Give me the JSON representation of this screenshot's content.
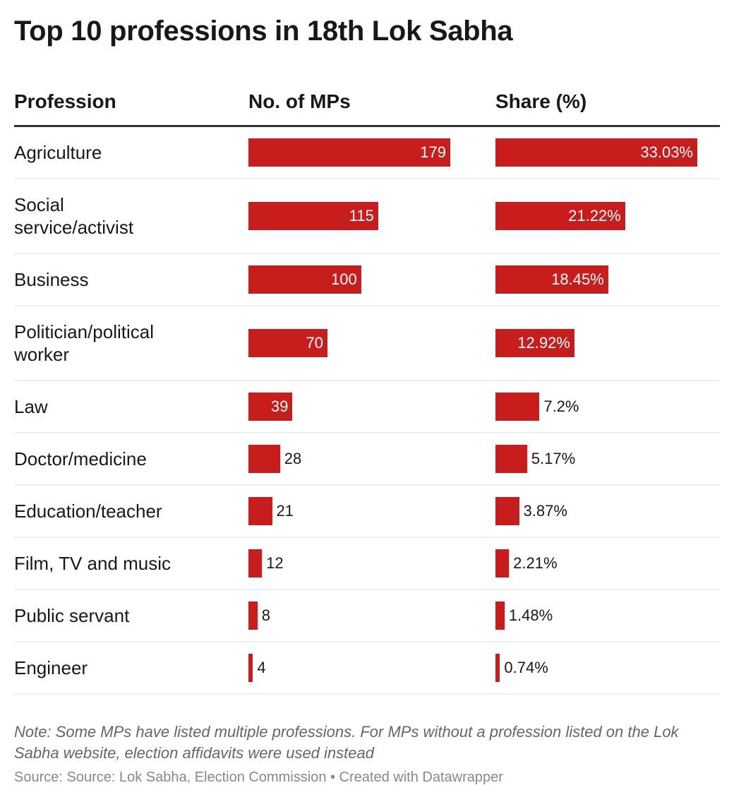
{
  "title": "Top 10 professions in 18th Lok Sabha",
  "headers": [
    "Profession",
    "No. of MPs",
    "Share (%)"
  ],
  "colors": {
    "bar": "#c71e1d",
    "rule": "#333333",
    "separator": "#eeeeee"
  },
  "chart_data": {
    "type": "table",
    "columns": [
      "Profession",
      "No. of MPs",
      "Share (%)"
    ],
    "rows": [
      {
        "profession": "Agriculture",
        "mps": 179,
        "share": 33.03,
        "share_label": "33.03%"
      },
      {
        "profession": "Social service/activist",
        "mps": 115,
        "share": 21.22,
        "share_label": "21.22%"
      },
      {
        "profession": "Business",
        "mps": 100,
        "share": 18.45,
        "share_label": "18.45%"
      },
      {
        "profession": "Politician/political worker",
        "mps": 70,
        "share": 12.92,
        "share_label": "12.92%"
      },
      {
        "profession": "Law",
        "mps": 39,
        "share": 7.2,
        "share_label": "7.2%"
      },
      {
        "profession": "Doctor/medicine",
        "mps": 28,
        "share": 5.17,
        "share_label": "5.17%"
      },
      {
        "profession": "Education/teacher",
        "mps": 21,
        "share": 3.87,
        "share_label": "3.87%"
      },
      {
        "profession": "Film, TV and music",
        "mps": 12,
        "share": 2.21,
        "share_label": "2.21%"
      },
      {
        "profession": "Public servant",
        "mps": 8,
        "share": 1.48,
        "share_label": "1.48%"
      },
      {
        "profession": "Engineer",
        "mps": 4,
        "share": 0.74,
        "share_label": "0.74%"
      }
    ]
  },
  "note": "Note: Some MPs have listed multiple professions. For MPs without a profession listed on the Lok Sabha website, election affidavits were used instead",
  "source": "Source: Source: Lok Sabha, Election Commission • Created with Datawrapper"
}
